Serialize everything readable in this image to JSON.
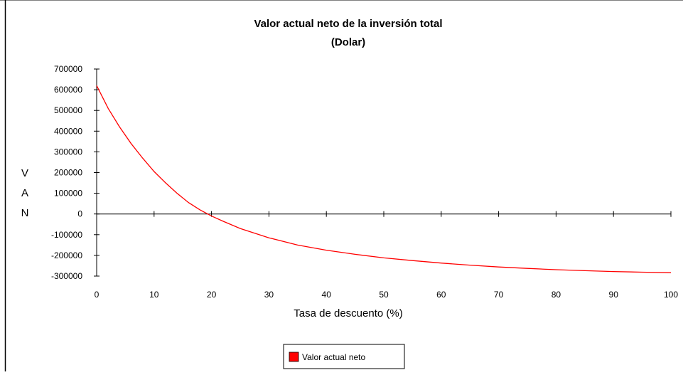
{
  "chart_data": {
    "type": "line",
    "title": "Valor actual neto de la inversión total",
    "subtitle": "(Dolar)",
    "xlabel": "Tasa de descuento (%)",
    "ylabel": "V A N",
    "ylabel_letters": [
      "V",
      "A",
      "N"
    ],
    "xlim": [
      0,
      100
    ],
    "ylim": [
      -300000,
      700000
    ],
    "x_ticks": [
      0,
      10,
      20,
      30,
      40,
      50,
      60,
      70,
      80,
      90,
      100
    ],
    "y_ticks": [
      700000,
      600000,
      500000,
      400000,
      300000,
      200000,
      100000,
      0,
      -100000,
      -200000,
      -300000
    ],
    "grid": false,
    "legend_position": "bottom-center",
    "series": [
      {
        "name": "Valor actual neto",
        "color": "#ff0000",
        "x": [
          0,
          2,
          4,
          6,
          8,
          10,
          12,
          14,
          16,
          18,
          20,
          22,
          25,
          30,
          35,
          40,
          45,
          50,
          55,
          60,
          65,
          70,
          75,
          80,
          85,
          90,
          95,
          100
        ],
        "y": [
          620000,
          510000,
          420000,
          340000,
          270000,
          205000,
          150000,
          100000,
          55000,
          20000,
          -10000,
          -35000,
          -70000,
          -115000,
          -150000,
          -175000,
          -195000,
          -212000,
          -225000,
          -237000,
          -247000,
          -256000,
          -263000,
          -269000,
          -274000,
          -278000,
          -281000,
          -284000
        ]
      }
    ]
  }
}
